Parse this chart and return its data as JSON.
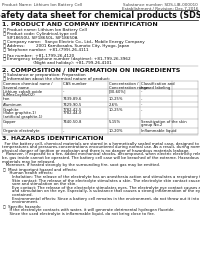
{
  "title": "Safety data sheet for chemical products (SDS)",
  "header_left": "Product Name: Lithium Ion Battery Cell",
  "header_right_line1": "Substance number: SDS-LIB-000010",
  "header_right_line2": "Establishment / Revision: Dec.7,2016",
  "section1_title": "1. PRODUCT AND COMPANY IDENTIFICATION",
  "section1_lines": [
    " ・ Product name: Lithium Ion Battery Cell",
    " ・ Product code: Cylindrical-type cell",
    "    SIF18650U, SIF18650L, SIF18650A",
    " ・ Company name:   Sanyo Electric Co., Ltd., Mobile Energy Company",
    " ・ Address:         2001 Kamikosaka, Sumoto City, Hyogo, Japan",
    " ・ Telephone number:  +81-(799)-26-4111",
    " ・ Fax number:  +81-1799-26-4120",
    " ・ Emergency telephone number (daytime): +81-799-26-3962",
    "                         (Night and holiday): +81-799-26-4101"
  ],
  "section2_title": "2. COMPOSITION / INFORMATION ON INGREDIENTS",
  "section2_lines": [
    " ・ Substance or preparation: Preparation",
    " ・ Information about the chemical nature of product:"
  ],
  "col_headers_row1": [
    "Common chemical name /",
    "CAS number",
    "Concentration /",
    "Classification and"
  ],
  "col_headers_row2": [
    "Several name",
    "",
    "Concentration range",
    "hazard labeling"
  ],
  "table_rows": [
    [
      "Lithium cobalt oxide\n(LiMnxCoyNizO2)",
      "-",
      "[30-60%]",
      "-"
    ],
    [
      "Iron",
      "7439-89-6",
      "10-25%",
      "-"
    ],
    [
      "Aluminum",
      "7429-90-5",
      "2-6%",
      "-"
    ],
    [
      "Graphite\n(flake graphite-1)\n(artificial graphite-1)",
      "7782-42-5\n7782-44-0",
      "10-25%",
      "-"
    ],
    [
      "Copper",
      "7440-50-8",
      "5-15%",
      "Sensitization of the skin\ngroup No.2"
    ],
    [
      "Organic electrolyte",
      "-",
      "10-20%",
      "Inflammable liquid"
    ]
  ],
  "section3_title": "3. HAZARDS IDENTIFICATION",
  "section3_para": [
    "  For the battery cell, chemical materials are stored in a hermetically sealed metal case, designed to withstand",
    "temperatures and pressures-concentrations encountered during normal use. As a result, during normal use, there is no",
    "physical danger of ignition or explosion and there is no danger of hazardous materials leakage.",
    "   However, if exposed to a fire, added mechanical shocks, decomposed, when electric electricity released, any issue can",
    "be, gas inside cannot be operated. The battery cell case will be breached of the extreme. Hazardous",
    "materials may be released.",
    "   Moreover, if heated strongly by the surrounding fire, soot gas may be emitted."
  ],
  "section3_bullet1": " ・  Most important hazard and effects:",
  "section3_human": "      Human health effects:",
  "section3_human_lines": [
    "        Inhalation: The release of the electrolyte has an anesthesia action and stimulates a respiratory tract.",
    "        Skin contact: The release of the electrolyte stimulates a skin. The electrolyte skin contact causes a",
    "        sore and stimulation on the skin.",
    "        Eye contact: The release of the electrolyte stimulates eyes. The electrolyte eye contact causes a sore",
    "        and stimulation on the eye. Especially, a substance that causes a strong inflammation of the eye is",
    "        contained.",
    "        Environmental effects: Since a battery cell remains in the environment, do not throw out it into the",
    "        environment."
  ],
  "section3_bullet2": " ・  Specific hazards:",
  "section3_specific": [
    "      If the electrolyte contacts with water, it will generate detrimental hydrogen fluoride.",
    "      Since the used electrolyte is inflammable liquid, do not bring close to fire."
  ],
  "bg_color": "#ffffff",
  "line_color": "#555555",
  "text_color": "#111111",
  "header_fs": 5.0,
  "title_fs": 5.8,
  "section_title_fs": 4.5,
  "body_fs": 3.5,
  "small_fs": 3.0
}
